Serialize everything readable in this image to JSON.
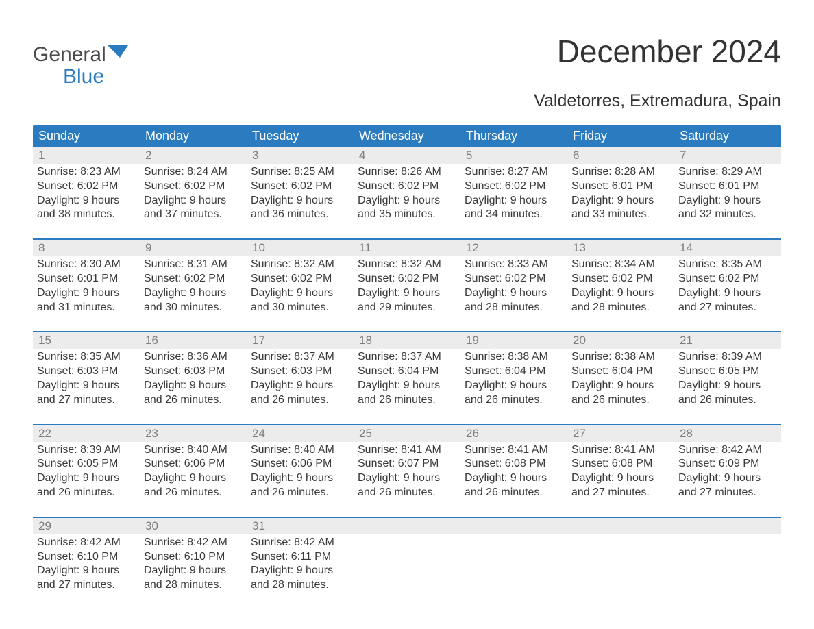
{
  "logo": {
    "general": "General",
    "blue": "Blue",
    "icon_color": "#2a7bbf"
  },
  "title": "December 2024",
  "subtitle": "Valdetorres, Extremadura, Spain",
  "colors": {
    "header_bg": "#2a7bbf",
    "header_text": "#ffffff",
    "daynum_bg": "#ececec",
    "daynum_text": "#7d7d7d",
    "body_text": "#3a3a3a",
    "rule": "#2a7bbf"
  },
  "day_labels": [
    "Sunday",
    "Monday",
    "Tuesday",
    "Wednesday",
    "Thursday",
    "Friday",
    "Saturday"
  ],
  "weeks": [
    [
      {
        "n": "1",
        "sr": "Sunrise: 8:23 AM",
        "ss": "Sunset: 6:02 PM",
        "dl1": "Daylight: 9 hours",
        "dl2": "and 38 minutes."
      },
      {
        "n": "2",
        "sr": "Sunrise: 8:24 AM",
        "ss": "Sunset: 6:02 PM",
        "dl1": "Daylight: 9 hours",
        "dl2": "and 37 minutes."
      },
      {
        "n": "3",
        "sr": "Sunrise: 8:25 AM",
        "ss": "Sunset: 6:02 PM",
        "dl1": "Daylight: 9 hours",
        "dl2": "and 36 minutes."
      },
      {
        "n": "4",
        "sr": "Sunrise: 8:26 AM",
        "ss": "Sunset: 6:02 PM",
        "dl1": "Daylight: 9 hours",
        "dl2": "and 35 minutes."
      },
      {
        "n": "5",
        "sr": "Sunrise: 8:27 AM",
        "ss": "Sunset: 6:02 PM",
        "dl1": "Daylight: 9 hours",
        "dl2": "and 34 minutes."
      },
      {
        "n": "6",
        "sr": "Sunrise: 8:28 AM",
        "ss": "Sunset: 6:01 PM",
        "dl1": "Daylight: 9 hours",
        "dl2": "and 33 minutes."
      },
      {
        "n": "7",
        "sr": "Sunrise: 8:29 AM",
        "ss": "Sunset: 6:01 PM",
        "dl1": "Daylight: 9 hours",
        "dl2": "and 32 minutes."
      }
    ],
    [
      {
        "n": "8",
        "sr": "Sunrise: 8:30 AM",
        "ss": "Sunset: 6:01 PM",
        "dl1": "Daylight: 9 hours",
        "dl2": "and 31 minutes."
      },
      {
        "n": "9",
        "sr": "Sunrise: 8:31 AM",
        "ss": "Sunset: 6:02 PM",
        "dl1": "Daylight: 9 hours",
        "dl2": "and 30 minutes."
      },
      {
        "n": "10",
        "sr": "Sunrise: 8:32 AM",
        "ss": "Sunset: 6:02 PM",
        "dl1": "Daylight: 9 hours",
        "dl2": "and 30 minutes."
      },
      {
        "n": "11",
        "sr": "Sunrise: 8:32 AM",
        "ss": "Sunset: 6:02 PM",
        "dl1": "Daylight: 9 hours",
        "dl2": "and 29 minutes."
      },
      {
        "n": "12",
        "sr": "Sunrise: 8:33 AM",
        "ss": "Sunset: 6:02 PM",
        "dl1": "Daylight: 9 hours",
        "dl2": "and 28 minutes."
      },
      {
        "n": "13",
        "sr": "Sunrise: 8:34 AM",
        "ss": "Sunset: 6:02 PM",
        "dl1": "Daylight: 9 hours",
        "dl2": "and 28 minutes."
      },
      {
        "n": "14",
        "sr": "Sunrise: 8:35 AM",
        "ss": "Sunset: 6:02 PM",
        "dl1": "Daylight: 9 hours",
        "dl2": "and 27 minutes."
      }
    ],
    [
      {
        "n": "15",
        "sr": "Sunrise: 8:35 AM",
        "ss": "Sunset: 6:03 PM",
        "dl1": "Daylight: 9 hours",
        "dl2": "and 27 minutes."
      },
      {
        "n": "16",
        "sr": "Sunrise: 8:36 AM",
        "ss": "Sunset: 6:03 PM",
        "dl1": "Daylight: 9 hours",
        "dl2": "and 26 minutes."
      },
      {
        "n": "17",
        "sr": "Sunrise: 8:37 AM",
        "ss": "Sunset: 6:03 PM",
        "dl1": "Daylight: 9 hours",
        "dl2": "and 26 minutes."
      },
      {
        "n": "18",
        "sr": "Sunrise: 8:37 AM",
        "ss": "Sunset: 6:04 PM",
        "dl1": "Daylight: 9 hours",
        "dl2": "and 26 minutes."
      },
      {
        "n": "19",
        "sr": "Sunrise: 8:38 AM",
        "ss": "Sunset: 6:04 PM",
        "dl1": "Daylight: 9 hours",
        "dl2": "and 26 minutes."
      },
      {
        "n": "20",
        "sr": "Sunrise: 8:38 AM",
        "ss": "Sunset: 6:04 PM",
        "dl1": "Daylight: 9 hours",
        "dl2": "and 26 minutes."
      },
      {
        "n": "21",
        "sr": "Sunrise: 8:39 AM",
        "ss": "Sunset: 6:05 PM",
        "dl1": "Daylight: 9 hours",
        "dl2": "and 26 minutes."
      }
    ],
    [
      {
        "n": "22",
        "sr": "Sunrise: 8:39 AM",
        "ss": "Sunset: 6:05 PM",
        "dl1": "Daylight: 9 hours",
        "dl2": "and 26 minutes."
      },
      {
        "n": "23",
        "sr": "Sunrise: 8:40 AM",
        "ss": "Sunset: 6:06 PM",
        "dl1": "Daylight: 9 hours",
        "dl2": "and 26 minutes."
      },
      {
        "n": "24",
        "sr": "Sunrise: 8:40 AM",
        "ss": "Sunset: 6:06 PM",
        "dl1": "Daylight: 9 hours",
        "dl2": "and 26 minutes."
      },
      {
        "n": "25",
        "sr": "Sunrise: 8:41 AM",
        "ss": "Sunset: 6:07 PM",
        "dl1": "Daylight: 9 hours",
        "dl2": "and 26 minutes."
      },
      {
        "n": "26",
        "sr": "Sunrise: 8:41 AM",
        "ss": "Sunset: 6:08 PM",
        "dl1": "Daylight: 9 hours",
        "dl2": "and 26 minutes."
      },
      {
        "n": "27",
        "sr": "Sunrise: 8:41 AM",
        "ss": "Sunset: 6:08 PM",
        "dl1": "Daylight: 9 hours",
        "dl2": "and 27 minutes."
      },
      {
        "n": "28",
        "sr": "Sunrise: 8:42 AM",
        "ss": "Sunset: 6:09 PM",
        "dl1": "Daylight: 9 hours",
        "dl2": "and 27 minutes."
      }
    ],
    [
      {
        "n": "29",
        "sr": "Sunrise: 8:42 AM",
        "ss": "Sunset: 6:10 PM",
        "dl1": "Daylight: 9 hours",
        "dl2": "and 27 minutes."
      },
      {
        "n": "30",
        "sr": "Sunrise: 8:42 AM",
        "ss": "Sunset: 6:10 PM",
        "dl1": "Daylight: 9 hours",
        "dl2": "and 28 minutes."
      },
      {
        "n": "31",
        "sr": "Sunrise: 8:42 AM",
        "ss": "Sunset: 6:11 PM",
        "dl1": "Daylight: 9 hours",
        "dl2": "and 28 minutes."
      },
      null,
      null,
      null,
      null
    ]
  ]
}
